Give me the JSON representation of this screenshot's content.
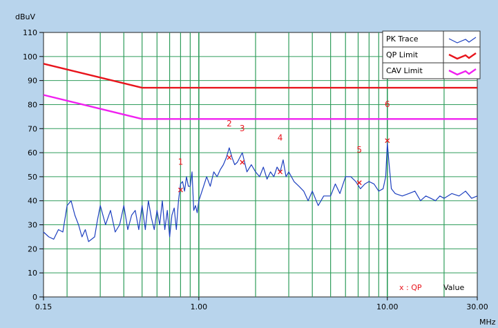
{
  "chart_data": {
    "type": "line",
    "title": "",
    "ylabel": "dBuV",
    "xlabel": "MHz",
    "x_scale": "log",
    "xlim": [
      0.15,
      30
    ],
    "ylim": [
      0,
      110
    ],
    "y_ticks": [
      0,
      10,
      20,
      30,
      40,
      50,
      60,
      70,
      80,
      90,
      100,
      110
    ],
    "x_tick_labels": [
      {
        "value": 0.15,
        "label": "0.15"
      },
      {
        "value": 1,
        "label": "1.00"
      },
      {
        "value": 10,
        "label": "10.00"
      },
      {
        "value": 30,
        "label": "30.00"
      }
    ],
    "grid": true,
    "legend": {
      "placement": "top-right",
      "items": [
        {
          "name": "PK Trace",
          "color": "#1c3fbf"
        },
        {
          "name": "QP Limit",
          "color": "#e8141c"
        },
        {
          "name": "CAV Limit",
          "color": "#f020f0"
        }
      ]
    },
    "series": [
      {
        "name": "PK Trace",
        "color": "#1c3fbf",
        "x": [
          0.15,
          0.16,
          0.17,
          0.18,
          0.19,
          0.2,
          0.21,
          0.22,
          0.23,
          0.24,
          0.25,
          0.26,
          0.27,
          0.28,
          0.29,
          0.3,
          0.32,
          0.34,
          0.36,
          0.38,
          0.4,
          0.42,
          0.44,
          0.46,
          0.48,
          0.5,
          0.52,
          0.54,
          0.56,
          0.58,
          0.6,
          0.62,
          0.64,
          0.66,
          0.68,
          0.7,
          0.72,
          0.74,
          0.76,
          0.78,
          0.8,
          0.82,
          0.84,
          0.86,
          0.88,
          0.9,
          0.92,
          0.94,
          0.96,
          0.98,
          1.0,
          1.05,
          1.1,
          1.15,
          1.2,
          1.25,
          1.3,
          1.35,
          1.4,
          1.45,
          1.5,
          1.55,
          1.6,
          1.7,
          1.8,
          1.9,
          2.0,
          2.1,
          2.2,
          2.3,
          2.4,
          2.5,
          2.6,
          2.7,
          2.8,
          2.9,
          3.0,
          3.2,
          3.4,
          3.6,
          3.8,
          4.0,
          4.3,
          4.6,
          5.0,
          5.3,
          5.6,
          6.0,
          6.4,
          6.8,
          7.2,
          7.6,
          8.0,
          8.5,
          9.0,
          9.5,
          9.8,
          10.0,
          10.2,
          10.5,
          11.0,
          12.0,
          13.0,
          14.0,
          15.0,
          16.0,
          17.0,
          18.0,
          19.0,
          20.0,
          22.0,
          24.0,
          26.0,
          28.0,
          30.0
        ],
        "y": [
          27,
          25,
          24,
          28,
          27,
          38,
          40,
          34,
          30,
          25,
          28,
          23,
          24,
          25,
          32,
          38,
          30,
          36,
          27,
          30,
          38,
          28,
          34,
          36,
          28,
          38,
          28,
          40,
          33,
          28,
          36,
          30,
          40,
          28,
          36,
          25,
          34,
          37,
          28,
          40,
          47,
          48,
          44,
          50,
          46,
          46,
          52,
          36,
          38,
          35,
          40,
          45,
          50,
          46,
          52,
          50,
          53,
          55,
          58,
          62,
          58,
          55,
          56,
          60,
          52,
          55,
          52,
          50,
          54,
          49,
          52,
          50,
          54,
          52,
          57,
          50,
          52,
          48,
          46,
          44,
          40,
          44,
          38,
          42,
          42,
          47,
          43,
          50,
          50,
          48,
          45,
          47,
          48,
          47,
          44,
          45,
          50,
          64,
          56,
          45,
          43,
          42,
          43,
          44,
          40,
          42,
          41,
          40,
          42,
          41,
          43,
          42,
          44,
          41,
          42
        ]
      },
      {
        "name": "QP Limit",
        "color": "#e8141c",
        "x": [
          0.15,
          0.5,
          30
        ],
        "y": [
          97,
          87,
          87
        ]
      },
      {
        "name": "CAV Limit",
        "color": "#f020f0",
        "x": [
          0.15,
          0.5,
          30
        ],
        "y": [
          84,
          74,
          74
        ]
      }
    ],
    "markers": [
      {
        "label": "1",
        "x": 0.8,
        "y": 44.5,
        "label_y": 55
      },
      {
        "label": "2",
        "x": 1.45,
        "y": 58,
        "label_y": 71
      },
      {
        "label": "3",
        "x": 1.7,
        "y": 56,
        "label_y": 69
      },
      {
        "label": "4",
        "x": 2.7,
        "y": 52,
        "label_y": 65
      },
      {
        "label": "5",
        "x": 7.1,
        "y": 47.5,
        "label_y": 60
      },
      {
        "label": "6",
        "x": 10.0,
        "y": 65,
        "label_y": 79
      }
    ],
    "annotation": {
      "marker_legend": "x : QP",
      "value_label": "Value"
    }
  },
  "colors": {
    "background": "#b8d4ec",
    "plot_area": "#ffffff",
    "grid": "#2e9c5a",
    "marker": "#e8141c"
  }
}
